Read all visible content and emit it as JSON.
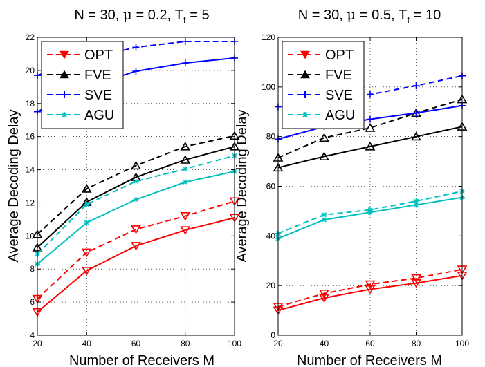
{
  "chart_data": [
    {
      "type": "line",
      "title": "N = 30, μ = 0.2, T_f = 5",
      "title_parts": {
        "main": "N = 30, ",
        "mu": "μ",
        "rest": " = 0.2, T",
        "sub": "f",
        "tail": " = 5"
      },
      "xlabel": "Number of Receivers M",
      "ylabel": "Average Decoding Delay",
      "x": [
        20,
        40,
        60,
        80,
        100
      ],
      "xticks": [
        "20",
        "40",
        "60",
        "80",
        "100"
      ],
      "xlim": [
        20,
        100
      ],
      "ylim": [
        4,
        22
      ],
      "yticks": [
        "4",
        "6",
        "8",
        "10",
        "12",
        "14",
        "16",
        "18",
        "20",
        "22"
      ],
      "grid": true,
      "legend_position": "top-left",
      "legend": [
        "OPT",
        "FVE",
        "SVE",
        "AGU"
      ],
      "series": [
        {
          "name": "OPT",
          "variant": "dashed",
          "color": "#ff0000",
          "marker": "triangle-down",
          "values": [
            6.2,
            9.0,
            10.4,
            11.2,
            12.1
          ]
        },
        {
          "name": "OPT",
          "variant": "solid",
          "color": "#ff0000",
          "marker": "triangle-down",
          "values": [
            5.4,
            7.9,
            9.4,
            10.35,
            11.1
          ]
        },
        {
          "name": "FVE",
          "variant": "dashed",
          "color": "#000000",
          "marker": "triangle-up",
          "values": [
            10.1,
            12.85,
            14.25,
            15.4,
            16.05
          ]
        },
        {
          "name": "FVE",
          "variant": "solid",
          "color": "#000000",
          "marker": "triangle-up",
          "values": [
            9.3,
            12.05,
            13.55,
            14.6,
            15.4
          ]
        },
        {
          "name": "SVE",
          "variant": "dashed",
          "color": "#0000ff",
          "marker": "plus",
          "values": [
            19.7,
            20.7,
            21.4,
            21.75,
            21.75
          ]
        },
        {
          "name": "SVE",
          "variant": "solid",
          "color": "#0000ff",
          "marker": "plus",
          "values": [
            17.5,
            19.0,
            19.95,
            20.45,
            20.75
          ]
        },
        {
          "name": "AGU",
          "variant": "dashed",
          "color": "#00bfbf",
          "marker": "star",
          "values": [
            8.9,
            11.9,
            13.3,
            14.05,
            14.85
          ]
        },
        {
          "name": "AGU",
          "variant": "solid",
          "color": "#00bfbf",
          "marker": "star",
          "values": [
            8.3,
            10.8,
            12.2,
            13.25,
            13.9
          ]
        }
      ]
    },
    {
      "type": "line",
      "title": "N = 30, μ = 0.5, T_f = 10",
      "title_parts": {
        "main": "N = 30, ",
        "mu": "μ",
        "rest": " = 0.5, T",
        "sub": "f",
        "tail": " = 10"
      },
      "xlabel": "Number of Receivers M",
      "ylabel": "Average Decoding Delay",
      "x": [
        20,
        40,
        60,
        80,
        100
      ],
      "xticks": [
        "20",
        "40",
        "60",
        "80",
        "100"
      ],
      "xlim": [
        20,
        100
      ],
      "ylim": [
        0,
        120
      ],
      "yticks": [
        "0",
        "20",
        "40",
        "60",
        "80",
        "100",
        "120"
      ],
      "grid": true,
      "legend_position": "top-left",
      "legend": [
        "OPT",
        "FVE",
        "SVE",
        "AGU"
      ],
      "series": [
        {
          "name": "OPT",
          "variant": "dashed",
          "color": "#ff0000",
          "marker": "triangle-down",
          "values": [
            11.5,
            16.8,
            20.5,
            23.0,
            26.5
          ]
        },
        {
          "name": "OPT",
          "variant": "solid",
          "color": "#ff0000",
          "marker": "triangle-down",
          "values": [
            10.0,
            15.0,
            18.5,
            21.0,
            24.0
          ]
        },
        {
          "name": "FVE",
          "variant": "dashed",
          "color": "#000000",
          "marker": "triangle-up",
          "values": [
            71.5,
            79.5,
            83.5,
            89.5,
            95.0
          ]
        },
        {
          "name": "FVE",
          "variant": "solid",
          "color": "#000000",
          "marker": "triangle-up",
          "values": [
            67.5,
            72.0,
            76.0,
            80.0,
            84.0
          ]
        },
        {
          "name": "SVE",
          "variant": "dashed",
          "color": "#0000ff",
          "marker": "plus",
          "values": [
            92.0,
            94.5,
            97.0,
            100.5,
            104.5
          ]
        },
        {
          "name": "SVE",
          "variant": "solid",
          "color": "#0000ff",
          "marker": "plus",
          "values": [
            79.0,
            84.0,
            87.0,
            89.5,
            92.5
          ]
        },
        {
          "name": "AGU",
          "variant": "dashed",
          "color": "#00bfbf",
          "marker": "star",
          "values": [
            41.0,
            48.5,
            50.5,
            54.0,
            58.0
          ]
        },
        {
          "name": "AGU",
          "variant": "solid",
          "color": "#00bfbf",
          "marker": "star",
          "values": [
            39.0,
            46.5,
            49.5,
            52.5,
            55.5
          ]
        }
      ]
    }
  ]
}
